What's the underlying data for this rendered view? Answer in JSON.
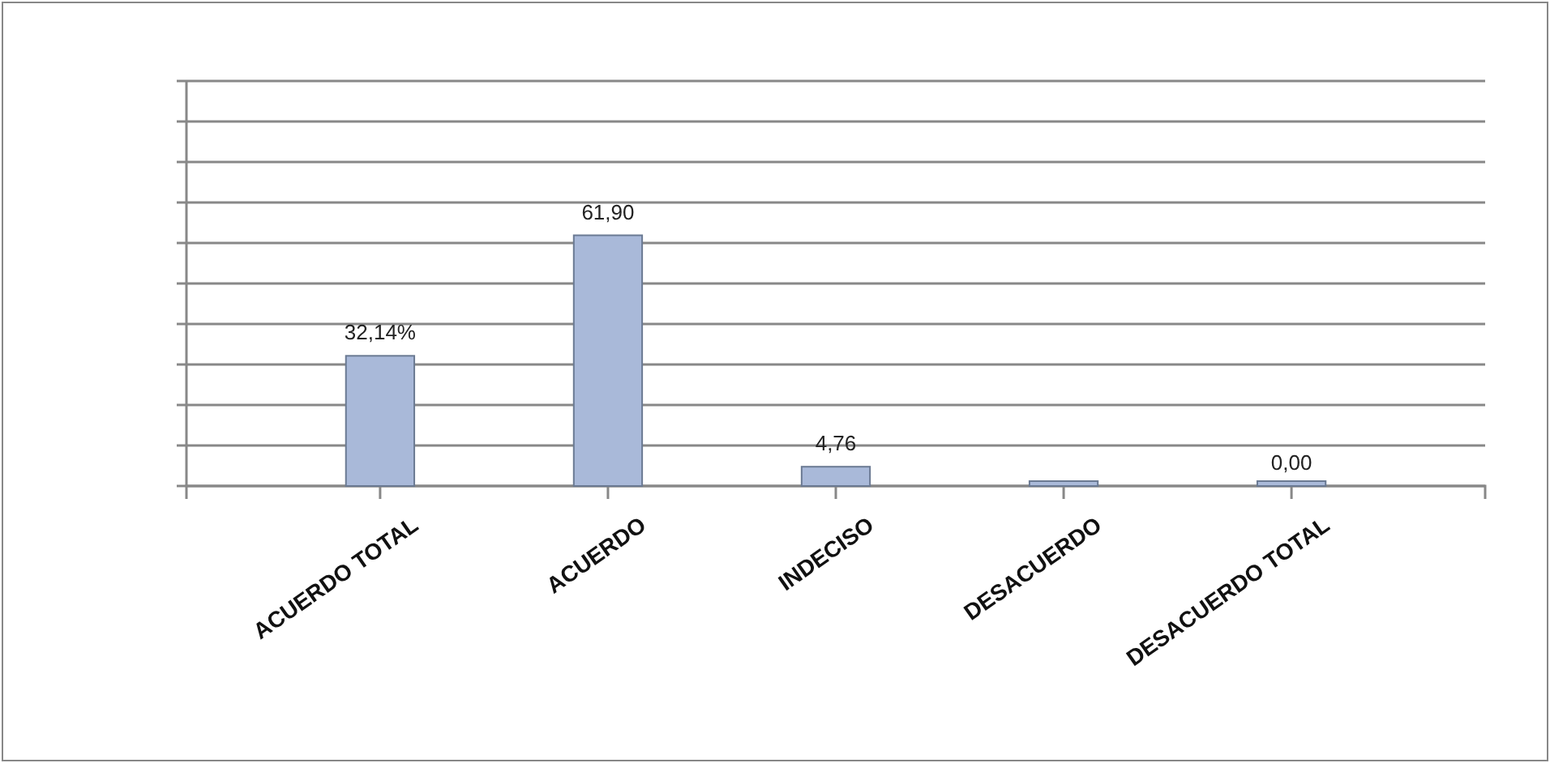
{
  "chart_data": {
    "type": "bar",
    "categories": [
      "ACUERDO TOTAL",
      "ACUERDO",
      "INDECISO",
      "DESACUERDO",
      "DESACUERDO TOTAL"
    ],
    "values": [
      32.14,
      61.9,
      4.76,
      0,
      0
    ],
    "value_labels": [
      "32,14%",
      "61,90",
      "4,76",
      null,
      "0,00"
    ],
    "color": "#a9b9d9",
    "ylim": [
      0,
      100
    ],
    "yticks": [
      {
        "value": 0,
        "label": null
      },
      {
        "value": 10,
        "label": null
      },
      {
        "value": 20,
        "label": null
      },
      {
        "value": 30,
        "label": null
      },
      {
        "value": 40,
        "label": null
      },
      {
        "value": 50,
        "label": null
      },
      {
        "value": 60,
        "label": null
      },
      {
        "value": 70,
        "label": null
      },
      {
        "value": 80,
        "label": null
      },
      {
        "value": 90,
        "label": null
      },
      {
        "value": 100,
        "label": null
      }
    ],
    "grid": "y",
    "tick_labels": "x"
  }
}
